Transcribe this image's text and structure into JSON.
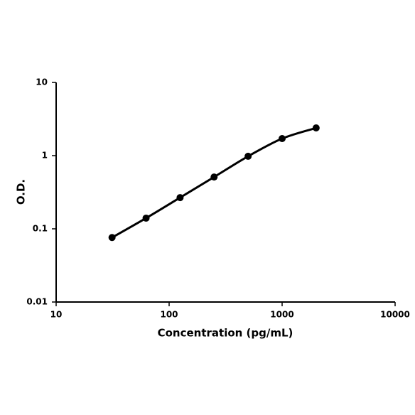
{
  "chart_data": {
    "type": "line",
    "xlabel": "Concentration (pg/mL)",
    "ylabel": "O.D.",
    "x": [
      31.25,
      62.5,
      125,
      250,
      500,
      1000,
      2000
    ],
    "series": [
      {
        "color": "#000000",
        "values": [
          0.076,
          0.14,
          0.267,
          0.51,
          0.98,
          1.71,
          2.39
        ]
      }
    ],
    "xlim": [
      10,
      10000
    ],
    "xticks": [
      10,
      100,
      1000,
      10000
    ],
    "ylim": [
      0.01,
      10
    ],
    "yticks": [
      0.01,
      0.1,
      1,
      10
    ],
    "xscale": "log",
    "yscale": "log",
    "grid": false,
    "markers": true
  }
}
